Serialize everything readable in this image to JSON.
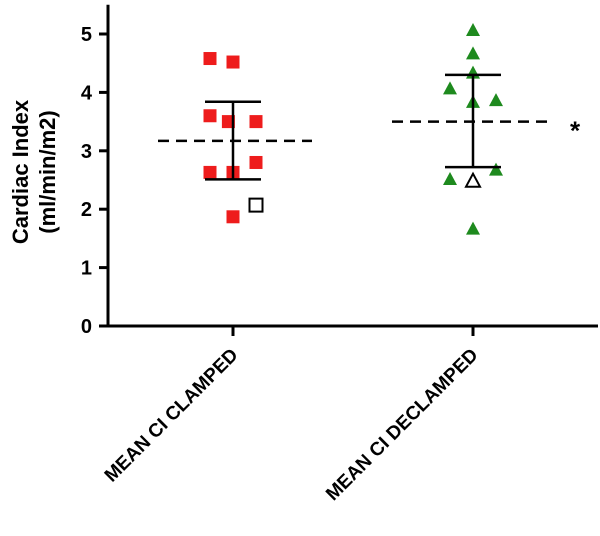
{
  "chart_data": {
    "type": "scatter",
    "title": "",
    "xlabel": "",
    "ylabel_lines": [
      "Cardiac Index",
      "(ml/min/m2)"
    ],
    "ylim": [
      0,
      5.5
    ],
    "yticks": [
      0,
      1,
      2,
      3,
      4,
      5
    ],
    "grid": false,
    "legend": "none",
    "annotation": "*",
    "categories": [
      "MEAN CI CLAMPED",
      "MEAN CI DECLAMPED"
    ],
    "series": [
      {
        "name": "MEAN CI CLAMPED",
        "marker": "square",
        "color": "#ee1c1c",
        "points": [
          {
            "offset": -0.25,
            "value": 4.58
          },
          {
            "offset": 0.0,
            "value": 4.52
          },
          {
            "offset": -0.25,
            "value": 3.6
          },
          {
            "offset": -0.05,
            "value": 3.5
          },
          {
            "offset": 0.25,
            "value": 3.5
          },
          {
            "offset": 0.25,
            "value": 2.8
          },
          {
            "offset": -0.25,
            "value": 2.63
          },
          {
            "offset": 0.0,
            "value": 2.63
          },
          {
            "offset": 0.0,
            "value": 1.87
          }
        ],
        "outlier": {
          "offset": 0.25,
          "value": 2.07,
          "fill": "#ffffff"
        },
        "mean": 3.17,
        "sd_upper": 3.84,
        "sd_lower": 2.51
      },
      {
        "name": "MEAN CI DECLAMPED",
        "marker": "triangle",
        "color": "#1e8a1e",
        "points": [
          {
            "offset": 0.0,
            "value": 5.05
          },
          {
            "offset": 0.0,
            "value": 4.65
          },
          {
            "offset": 0.0,
            "value": 4.32
          },
          {
            "offset": -0.25,
            "value": 4.05
          },
          {
            "offset": 0.25,
            "value": 3.85
          },
          {
            "offset": 0.0,
            "value": 3.82
          },
          {
            "offset": 0.25,
            "value": 2.66
          },
          {
            "offset": -0.25,
            "value": 2.5
          },
          {
            "offset": 0.0,
            "value": 1.65
          }
        ],
        "outlier": {
          "offset": 0.0,
          "value": 2.47,
          "fill": "#ffffff"
        },
        "mean": 3.5,
        "sd_upper": 4.3,
        "sd_lower": 2.72
      }
    ]
  }
}
